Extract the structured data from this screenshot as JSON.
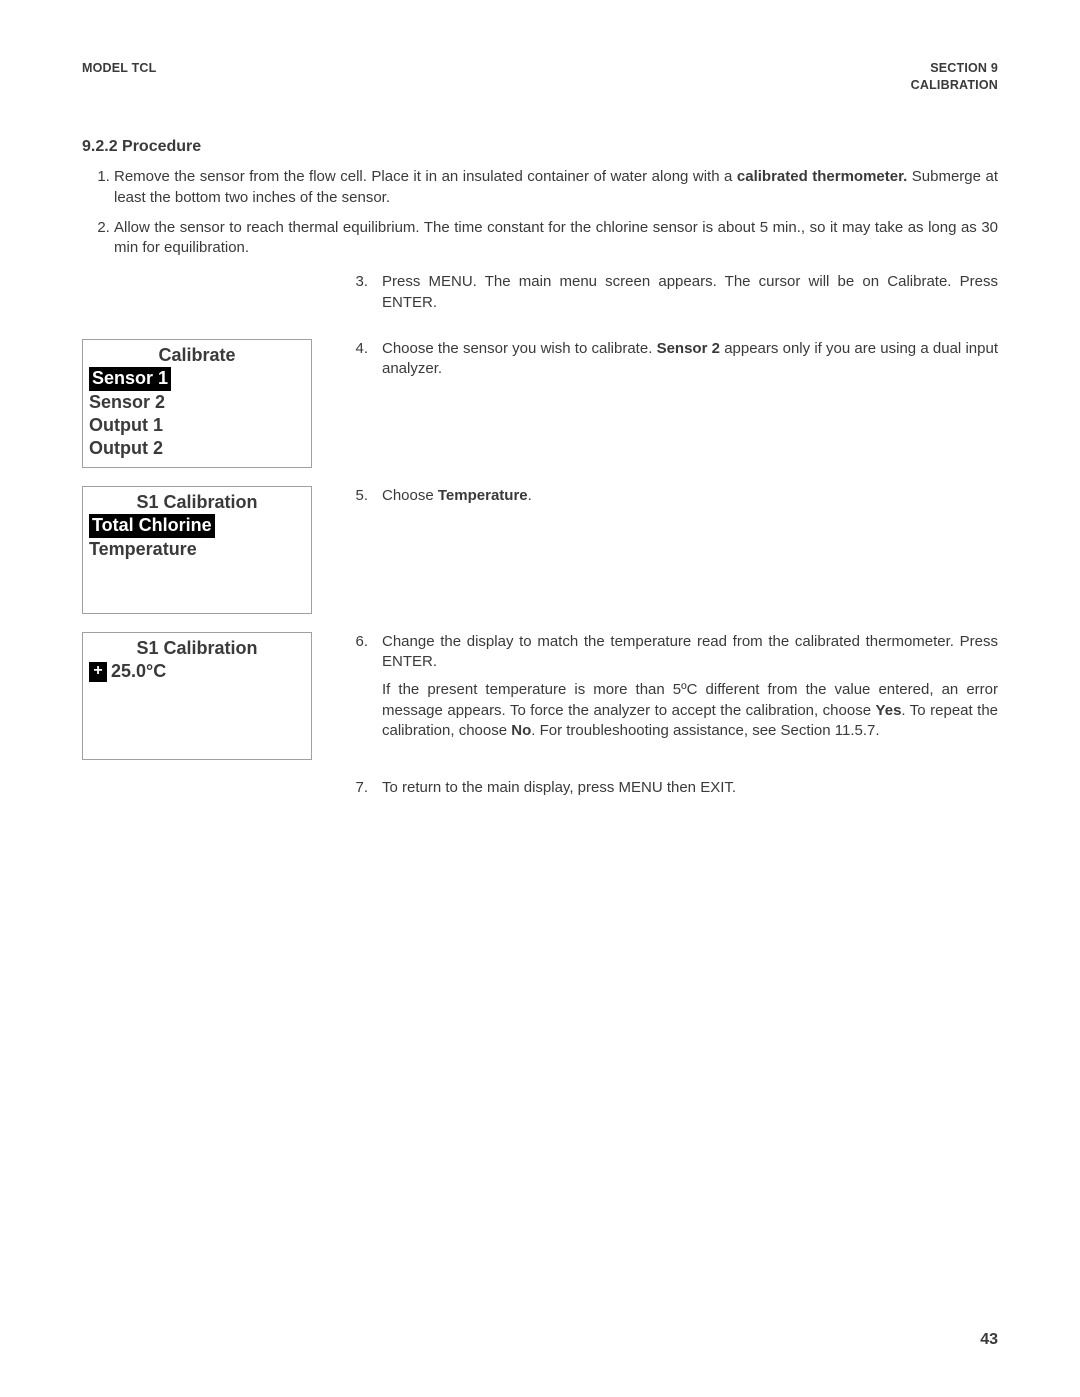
{
  "header": {
    "left": "MODEL TCL",
    "right_line1": "SECTION 9",
    "right_line2": "CALIBRATION"
  },
  "section_title": "9.2.2 Procedure",
  "intro_steps": [
    {
      "pre": "Remove the sensor from the flow cell. Place it in an insulated container of water along with a ",
      "bold": "calibrated thermometer.",
      "post": " Submerge at least the bottom two inches of the sensor."
    },
    {
      "pre": "Allow the sensor to reach thermal equilibrium. The time constant for the chlorine sensor is about 5 min., so it may take as long as 30 min for equilibration.",
      "bold": "",
      "post": ""
    }
  ],
  "rows": [
    {
      "panel": null,
      "steps": [
        {
          "n": "3.",
          "parts": [
            {
              "t": "Press MENU. The main menu screen appears. The cursor will be on Calibrate. Press ENTER."
            }
          ]
        }
      ]
    },
    {
      "panel": {
        "title": "Calibrate",
        "lines": [
          {
            "text": "Sensor 1",
            "highlighted": true
          },
          {
            "text": "Sensor 2",
            "highlighted": false
          },
          {
            "text": "Output 1",
            "highlighted": false
          },
          {
            "text": "Output 2",
            "highlighted": false
          }
        ]
      },
      "steps": [
        {
          "n": "4.",
          "parts": [
            {
              "t": "Choose the sensor you wish to calibrate. "
            },
            {
              "t": "Sensor 2",
              "b": true
            },
            {
              "t": " appears only if you are using a dual input analyzer."
            }
          ]
        }
      ]
    },
    {
      "panel": {
        "title": "S1 Calibration",
        "lines": [
          {
            "text": "Total Chlorine",
            "highlighted": true
          },
          {
            "text": "Temperature",
            "highlighted": false
          }
        ]
      },
      "steps": [
        {
          "n": "5.",
          "parts": [
            {
              "t": "Choose "
            },
            {
              "t": "Temperature",
              "b": true
            },
            {
              "t": "."
            }
          ]
        }
      ]
    },
    {
      "panel": {
        "title": "S1 Calibration",
        "value_line": {
          "prefix_symbol": "+",
          "value": "25.0°C"
        }
      },
      "steps": [
        {
          "n": "6.",
          "parts": [
            {
              "t": "Change the display to match the temperature read from the calibrated thermometer. Press ENTER."
            }
          ]
        },
        {
          "n": "",
          "parts": [
            {
              "t": "If the present temperature is more than 5ºC different from the value entered, an error message appears. To force the analyzer to accept the calibration, choose "
            },
            {
              "t": "Yes",
              "b": true
            },
            {
              "t": ". To repeat the calibration, choose "
            },
            {
              "t": "No",
              "b": true
            },
            {
              "t": ". For troubleshooting assistance, see Section 11.5.7."
            }
          ]
        }
      ]
    },
    {
      "panel": null,
      "steps": [
        {
          "n": "7.",
          "parts": [
            {
              "t": "To return to the main display, press MENU then EXIT."
            }
          ]
        }
      ]
    }
  ],
  "page_number": "43",
  "colors": {
    "text": "#3a3a3a",
    "panel_border": "#a0a0a0",
    "highlight_bg": "#000000",
    "highlight_fg": "#ffffff",
    "background": "#ffffff"
  }
}
